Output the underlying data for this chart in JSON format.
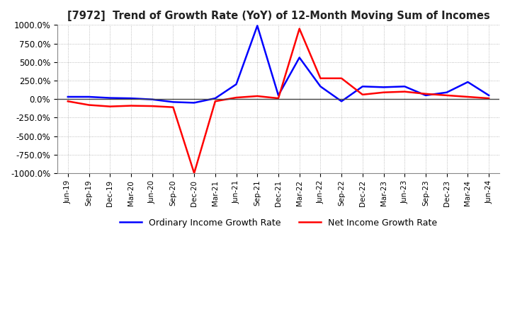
{
  "title": "[7972]  Trend of Growth Rate (YoY) of 12-Month Moving Sum of Incomes",
  "ylim": [
    -1000,
    1000
  ],
  "yticks": [
    -1000,
    -750,
    -500,
    -250,
    0,
    250,
    500,
    750,
    1000
  ],
  "ytick_labels": [
    "-1000.0%",
    "-750.0%",
    "-500.0%",
    "-250.0%",
    "0.0%",
    "250.0%",
    "500.0%",
    "750.0%",
    "1000.0%"
  ],
  "legend_labels": [
    "Ordinary Income Growth Rate",
    "Net Income Growth Rate"
  ],
  "line_colors": [
    "blue",
    "red"
  ],
  "background_color": "#ffffff",
  "grid_color": "#aaaaaa",
  "x_labels": [
    "Jun-19",
    "Sep-19",
    "Dec-19",
    "Mar-20",
    "Jun-20",
    "Sep-20",
    "Dec-20",
    "Mar-21",
    "Jun-21",
    "Sep-21",
    "Dec-21",
    "Mar-22",
    "Jun-22",
    "Sep-22",
    "Dec-22",
    "Mar-23",
    "Jun-23",
    "Sep-23",
    "Dec-23",
    "Mar-24",
    "Jun-24"
  ],
  "ordinary_income": [
    30,
    30,
    15,
    10,
    -5,
    -40,
    -50,
    10,
    200,
    990,
    50,
    560,
    170,
    -30,
    170,
    160,
    170,
    50,
    90,
    230,
    50
  ],
  "net_income": [
    -30,
    -80,
    -100,
    -90,
    -95,
    -110,
    -1000,
    -30,
    20,
    40,
    10,
    950,
    280,
    280,
    60,
    90,
    100,
    70,
    50,
    30,
    10
  ]
}
